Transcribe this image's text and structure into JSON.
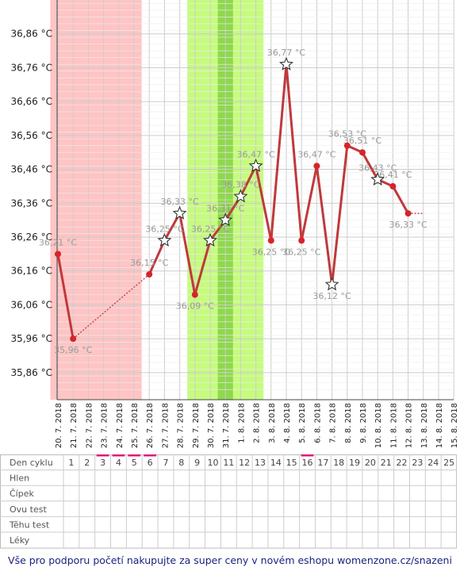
{
  "colors": {
    "line": "#c0393b",
    "point": "#d8232a",
    "period_band": "#ffc4c4",
    "fertile_band": "#c6fb7f",
    "ovulation_band": "#8fd84d",
    "grid": "#cccccc",
    "label": "#999999",
    "period_mark": "#e0187b",
    "footer_text": "#1a237e"
  },
  "chart_data": {
    "type": "line",
    "title": "",
    "xlabel": "",
    "ylabel": "",
    "ylim": [
      35.78,
      36.96
    ],
    "y_ticks": [
      "35,86 °C",
      "35,96 °C",
      "36,06 °C",
      "36,16 °C",
      "36,26 °C",
      "36,36 °C",
      "36,46 °C",
      "36,56 °C",
      "36,66 °C",
      "36,76 °C",
      "36,86 °C"
    ],
    "y_tick_values": [
      35.86,
      35.96,
      36.06,
      36.16,
      36.26,
      36.36,
      36.46,
      36.56,
      36.66,
      36.76,
      36.86
    ],
    "x_labels": [
      "20. 7. 2018",
      "21. 7. 2018",
      "22. 7. 2018",
      "23. 7. 2018",
      "24. 7. 2018",
      "25. 7. 2018",
      "26. 7. 2018",
      "27. 7. 2018",
      "28. 7. 2018",
      "29. 7. 2018",
      "30. 7. 2018",
      "31. 7. 2018",
      "1. 8. 2018",
      "2. 8. 2018",
      "3. 8. 2018",
      "4. 8. 2018",
      "5. 8. 2018",
      "6. 8. 2018",
      "7. 8. 2018",
      "8. 8. 2018",
      "9. 8. 2018",
      "10. 8. 2018",
      "11. 8. 2018",
      "12. 8. 2018",
      "13. 8. 2018",
      "14. 8. 2018",
      "15. 8. 2018"
    ],
    "grid": true,
    "bands": [
      {
        "kind": "period",
        "from_day": 1,
        "to_day": 6
      },
      {
        "kind": "fertile",
        "from_day": 10,
        "to_day": 14
      },
      {
        "kind": "ovulation",
        "from_day": 12,
        "to_day": 12
      }
    ],
    "points": [
      {
        "day": 1,
        "value": 36.21,
        "label": "36,21 °C",
        "marker": "dot"
      },
      {
        "day": 2,
        "value": 35.96,
        "label": "35,96 °C",
        "marker": "dot"
      },
      {
        "day": 7,
        "value": 36.15,
        "label": "36,15 °C",
        "marker": "dot"
      },
      {
        "day": 8,
        "value": 36.25,
        "label": "36,25 °C",
        "marker": "star"
      },
      {
        "day": 9,
        "value": 36.33,
        "label": "36,33 °C",
        "marker": "star"
      },
      {
        "day": 10,
        "value": 36.09,
        "label": "36,09 °C",
        "marker": "dot"
      },
      {
        "day": 11,
        "value": 36.25,
        "label": "36,25 °C",
        "marker": "star"
      },
      {
        "day": 12,
        "value": 36.31,
        "label": "36,31 °C",
        "marker": "star"
      },
      {
        "day": 13,
        "value": 36.38,
        "label": "36,38 °C",
        "marker": "star"
      },
      {
        "day": 14,
        "value": 36.47,
        "label": "36,47 °C",
        "marker": "star"
      },
      {
        "day": 15,
        "value": 36.25,
        "label": "36,25 °C",
        "marker": "dot"
      },
      {
        "day": 16,
        "value": 36.77,
        "label": "36,77 °C",
        "marker": "star"
      },
      {
        "day": 17,
        "value": 36.25,
        "label": "36,25 °C",
        "marker": "dot"
      },
      {
        "day": 18,
        "value": 36.47,
        "label": "36,47 °C",
        "marker": "dot"
      },
      {
        "day": 19,
        "value": 36.12,
        "label": "36,12 °C",
        "marker": "star"
      },
      {
        "day": 20,
        "value": 36.53,
        "label": "36,53 °C",
        "marker": "dot"
      },
      {
        "day": 21,
        "value": 36.51,
        "label": "36,51 °C",
        "marker": "dot"
      },
      {
        "day": 22,
        "value": 36.43,
        "label": "36,43 °C",
        "marker": "star"
      },
      {
        "day": 23,
        "value": 36.41,
        "label": "36,41 °C",
        "marker": "dot"
      },
      {
        "day": 24,
        "value": 36.33,
        "label": "36,33 °C",
        "marker": "dot"
      }
    ],
    "dotted_gaps": [
      [
        2,
        7
      ]
    ],
    "dotted_tail": [
      24,
      25
    ]
  },
  "table": {
    "rows": [
      "Den cyklu",
      "Hlen",
      "Čípek",
      "Ovu test",
      "Těhu test",
      "Léky"
    ],
    "days": [
      "1",
      "2",
      "3",
      "4",
      "5",
      "6",
      "7",
      "8",
      "9",
      "10",
      "11",
      "12",
      "13",
      "14",
      "15",
      "16",
      "17",
      "18",
      "19",
      "20",
      "21",
      "22",
      "23",
      "24",
      "25"
    ],
    "period_marked_days": [
      3,
      4,
      5,
      6,
      16
    ]
  },
  "footer": "Vše pro podporu početí nakupujte za super ceny v novém eshopu womenzone.cz/snazeni"
}
